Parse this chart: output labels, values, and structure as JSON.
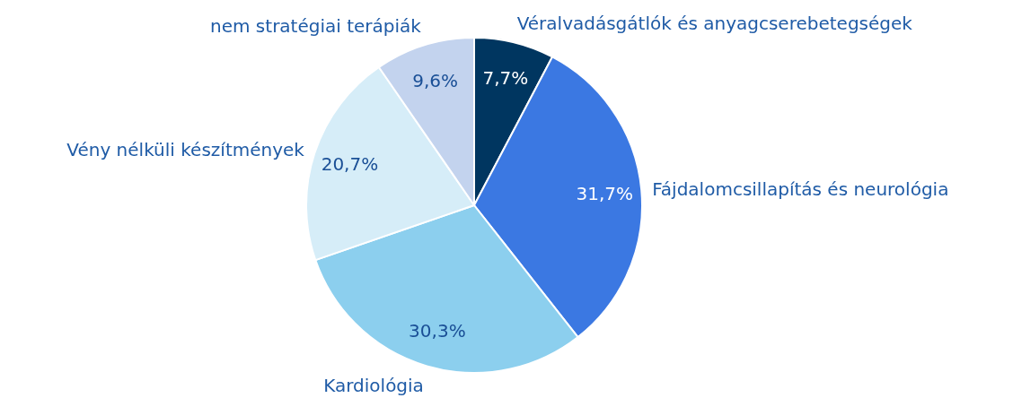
{
  "chart_data": {
    "type": "pie",
    "categories": [
      "Véralvadásgátlók és anyagcserebetegségek",
      "Fájdalomcsillapítás és neurológia",
      "Kardiológia",
      "Vény nélküli készítmények",
      "nem stratégiai terápiák"
    ],
    "values": [
      7.7,
      31.7,
      30.3,
      20.7,
      9.6
    ],
    "colors": [
      "#003660",
      "#3b78e2",
      "#8ccfee",
      "#d6edf8",
      "#c3d3ee"
    ],
    "value_labels": [
      "7,7%",
      "31,7%",
      "30,3%",
      "20,7%",
      "9,6%"
    ],
    "legend": false
  }
}
